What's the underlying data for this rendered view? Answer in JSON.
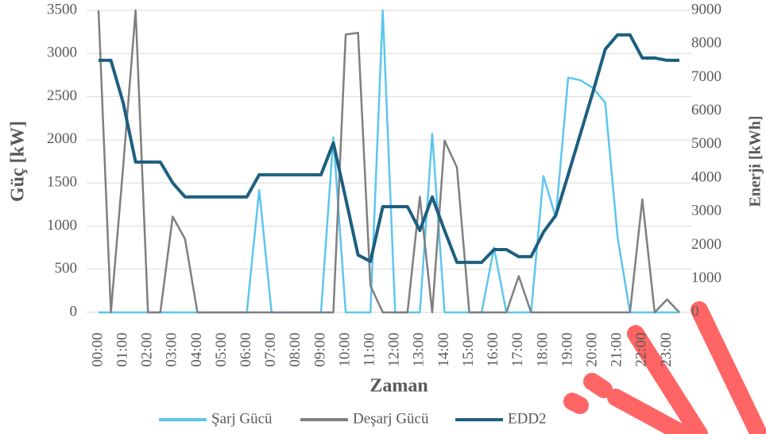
{
  "chart_data": {
    "type": "line",
    "x_label": "Zaman",
    "y_label": "Güç [kW]",
    "y2_label": "Enerji [kWh]",
    "categories": [
      "00:00",
      null,
      "01:00",
      null,
      "02:00",
      null,
      "03:00",
      null,
      "04:00",
      null,
      "05:00",
      null,
      "06:00",
      null,
      "07:00",
      null,
      "08:00",
      null,
      "09:00",
      null,
      "10:00",
      null,
      "11:00",
      null,
      "12:00",
      null,
      "13:00",
      null,
      "14:00",
      null,
      "15:00",
      null,
      "16:00",
      null,
      "17:00",
      null,
      "18:00",
      null,
      "19:00",
      null,
      "20:00",
      null,
      "21:00",
      null,
      "22:00",
      null,
      "23:00",
      null
    ],
    "ylim": [
      0,
      3500
    ],
    "yticks": [
      0,
      500,
      1000,
      1500,
      2000,
      2500,
      3000,
      3500
    ],
    "y2lim": [
      0,
      9000
    ],
    "y2ticks": [
      0,
      1000,
      2000,
      3000,
      4000,
      5000,
      6000,
      7000,
      8000,
      9000
    ],
    "grid": true,
    "legend": "bottom",
    "series": [
      {
        "name": "Şarj Gücü",
        "color": "#5cc6ee",
        "values": [
          0,
          0,
          0,
          0,
          0,
          0,
          0,
          0,
          0,
          0,
          0,
          0,
          0,
          1420,
          0,
          0,
          0,
          0,
          0,
          2030,
          0,
          0,
          0,
          3500,
          0,
          0,
          0,
          2070,
          0,
          0,
          0,
          0,
          750,
          0,
          0,
          0,
          1580,
          1100,
          2720,
          2690,
          2600,
          2430,
          870,
          0,
          0,
          0,
          0,
          0
        ]
      },
      {
        "name": "Deşarj Gücü",
        "color": "#7f7f7f",
        "values": [
          3500,
          0,
          1700,
          3500,
          0,
          0,
          1110,
          850,
          0,
          0,
          0,
          0,
          0,
          0,
          0,
          0,
          0,
          0,
          0,
          0,
          3220,
          3240,
          310,
          0,
          0,
          0,
          1340,
          0,
          1990,
          1680,
          0,
          0,
          0,
          0,
          420,
          0,
          0,
          0,
          0,
          0,
          0,
          0,
          0,
          0,
          1310,
          0,
          150,
          0
        ]
      },
      {
        "name": "EDD2",
        "color": "#1d5f80",
        "axis": "y2",
        "values": [
          7510,
          7510,
          6240,
          4480,
          4480,
          4480,
          3860,
          3440,
          3440,
          3440,
          3440,
          3440,
          3440,
          4100,
          4100,
          4100,
          4100,
          4100,
          4100,
          5050,
          3390,
          1710,
          1520,
          3150,
          3150,
          3150,
          2440,
          3440,
          2440,
          1490,
          1490,
          1490,
          1870,
          1870,
          1660,
          1660,
          2390,
          2890,
          4100,
          5330,
          6560,
          7840,
          8270,
          8270,
          7580,
          7580,
          7510,
          7510
        ]
      }
    ]
  }
}
